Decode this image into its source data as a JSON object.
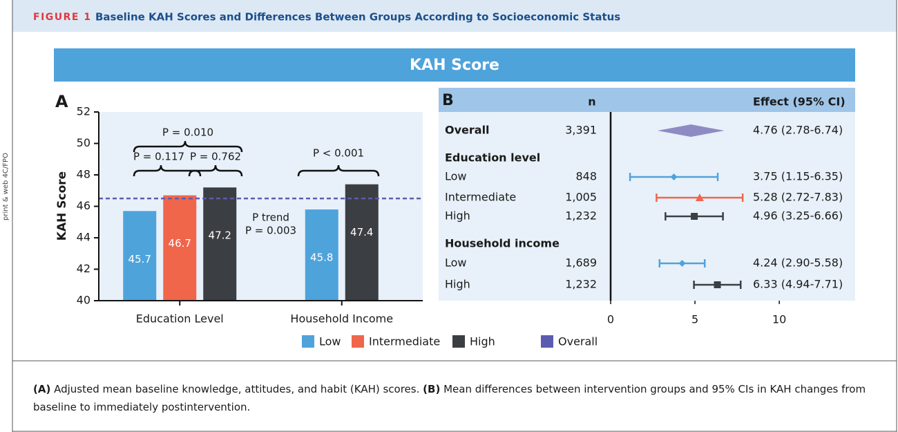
{
  "figure": {
    "label": "FIGURE 1",
    "title": "Baseline KAH Scores and Differences Between Groups According to Socioeconomic Status"
  },
  "side_note": "print & web 4C/FPO",
  "banner": "KAH Score",
  "caption": [
    {
      "label": "(A)",
      "text": "Adjusted mean baseline knowledge, attitudes, and habit (KAH) scores."
    },
    {
      "label": "(B)",
      "text": "Mean differences between intervention groups and 95% CIs in KAH changes from baseline to immediately postintervention."
    }
  ],
  "chart_data": [
    {
      "type": "bar",
      "panel": "A",
      "ylabel": "KAH Score",
      "categories": [
        "Education Level",
        "Household Income"
      ],
      "series": [
        {
          "name": "Low",
          "color": "#4fa3db",
          "values": [
            45.7,
            45.8
          ]
        },
        {
          "name": "Intermediate",
          "color": "#f0664b",
          "values": [
            46.7,
            null
          ]
        },
        {
          "name": "High",
          "color": "#3b3e42",
          "values": [
            47.2,
            47.4
          ]
        }
      ],
      "reference_line": {
        "name": "Overall",
        "color": "#5b5cb0",
        "value": 46.5
      },
      "ylim": [
        40,
        52
      ],
      "yticks": [
        40,
        42,
        44,
        46,
        48,
        50,
        52
      ],
      "annotations": {
        "p_education": "P = 0.010",
        "p_low_intermediate": "P = 0.117",
        "p_intermediate_high": "P = 0.762",
        "p_income": "P < 0.001",
        "p_trend_label": "P trend",
        "p_trend": "P = 0.003"
      }
    },
    {
      "type": "forest",
      "panel": "B",
      "n_header": "n",
      "effect_header": "Effect (95% CI)",
      "xlim": [
        0,
        14.5
      ],
      "xticks": [
        0,
        5,
        10
      ],
      "rows": [
        {
          "label": "Overall",
          "n": "3,391",
          "value": 4.76,
          "ci": [
            2.78,
            6.74
          ],
          "value_label": "4.76 (2.78-6.74)",
          "color": "#8e8bc4",
          "marker": "summary"
        },
        {
          "label": "Education level"
        },
        {
          "label": "Low",
          "n": "848",
          "value": 3.75,
          "ci": [
            1.15,
            6.35
          ],
          "value_label": "3.75 (1.15-6.35)",
          "color": "#4fa3db",
          "marker": "diamond"
        },
        {
          "label": "Intermediate",
          "n": "1,005",
          "value": 5.28,
          "ci": [
            2.72,
            7.83
          ],
          "value_label": "5.28 (2.72-7.83)",
          "color": "#f0664b",
          "marker": "triangle"
        },
        {
          "label": "High",
          "n": "1,232",
          "value": 4.96,
          "ci": [
            3.25,
            6.66
          ],
          "value_label": "4.96 (3.25-6.66)",
          "color": "#3b3e42",
          "marker": "square"
        },
        {
          "label": "Household income"
        },
        {
          "label": "Low",
          "n": "1,689",
          "value": 4.24,
          "ci": [
            2.9,
            5.58
          ],
          "value_label": "4.24 (2.90-5.58)",
          "color": "#4fa3db",
          "marker": "diamond"
        },
        {
          "label": "High",
          "n": "1,232",
          "value": 6.33,
          "ci": [
            4.94,
            7.71
          ],
          "value_label": "6.33 (4.94-7.71)",
          "color": "#3b3e42",
          "marker": "square"
        }
      ]
    }
  ]
}
